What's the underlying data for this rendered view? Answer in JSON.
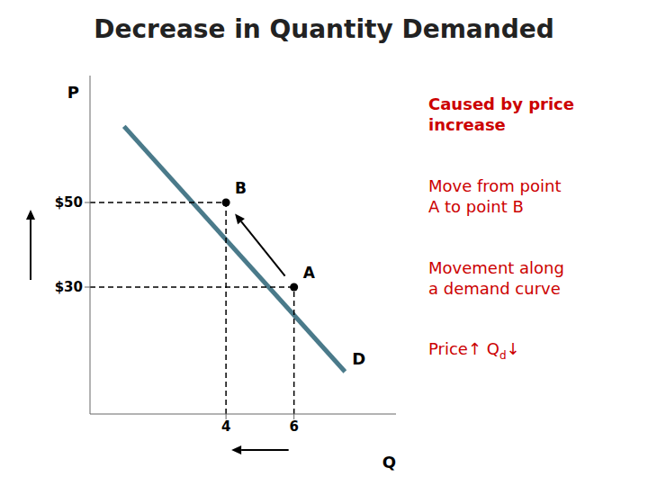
{
  "chart_data": {
    "type": "line",
    "title": "Decrease in Quantity Demanded",
    "x_label": "Q",
    "y_label": "P",
    "xlim": [
      0,
      9
    ],
    "ylim": [
      0,
      80
    ],
    "xticks": [
      4,
      6
    ],
    "yticks": [
      {
        "value": 30,
        "label": "$30"
      },
      {
        "value": 50,
        "label": "$50"
      }
    ],
    "series": [
      {
        "name": "D",
        "color": "#4a7a8a",
        "x": [
          1.0,
          7.5
        ],
        "values": [
          68,
          10
        ]
      }
    ],
    "points": [
      {
        "label": "A",
        "x": 6,
        "y": 30
      },
      {
        "label": "B",
        "x": 4,
        "y": 50
      }
    ],
    "arrow": {
      "from": "A",
      "to": "B"
    },
    "notes": {
      "color": "#cc0000",
      "texts": [
        "Caused by price\nincrease",
        "Move from point\nA to point B",
        "Movement along\na demand curve"
      ],
      "summary": {
        "text": "Price↑ Q",
        "subscript": "d",
        "suffix": "↓"
      }
    }
  }
}
